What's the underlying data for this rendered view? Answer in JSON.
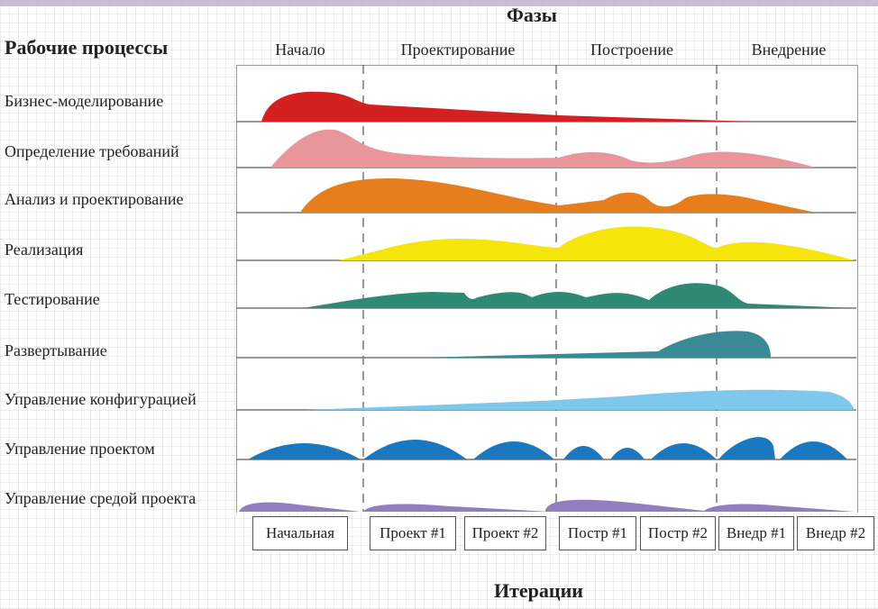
{
  "title_phases": "Фазы",
  "title_workflows": "Рабочие процессы",
  "title_iterations": "Итерации",
  "phases": [
    "Начало",
    "Проектирование",
    "Построение",
    "Внедрение"
  ],
  "workflows": [
    {
      "label": "Бизнес-моделирование",
      "color": "#d42020"
    },
    {
      "label": "Определение требований",
      "color": "#e8959c"
    },
    {
      "label": "Анализ и проектирование",
      "color": "#e67e1e"
    },
    {
      "label": "Реализация",
      "color": "#f5e50a"
    },
    {
      "label": "Тестирование",
      "color": "#2e8a74"
    },
    {
      "label": "Развертывание",
      "color": "#3a8a96"
    },
    {
      "label": "Управление конфигурацией",
      "color": "#7ec8ee"
    },
    {
      "label": "Управление проектом",
      "color": "#1a78c0"
    },
    {
      "label": "Управление средой проекта",
      "color": "#8f7fbf"
    }
  ],
  "iterations": [
    "Начальная",
    "Проект #1",
    "Проект #2",
    "Постр #1",
    "Постр #2",
    "Внедр #1",
    "Внедр #2"
  ]
}
